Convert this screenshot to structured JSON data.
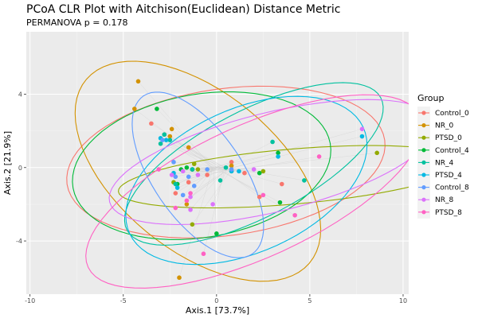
{
  "chart_data": {
    "type": "scatter",
    "title": "PCoA CLR Plot with Aitchison(Euclidean) Distance Metric",
    "subtitle": "PERMANOVA p = 0.178",
    "xlabel": "Axis.1   [73.7%]",
    "ylabel": "Axis.2   [21.9%]",
    "xlim": [
      -10.2,
      10.3
    ],
    "ylim": [
      -6.9,
      7.4
    ],
    "x_ticks": [
      -10,
      -5,
      0,
      5,
      10
    ],
    "y_ticks": [
      -4,
      0,
      4
    ],
    "grid": true,
    "legend_title": "Group",
    "legend_position": "right",
    "colors": {
      "panel_bg": "#ebebeb",
      "grid_major": "#ffffff",
      "grid_minor": "#f5f5f5",
      "segment": "#cfcfcf"
    },
    "series": [
      {
        "name": "Control_0",
        "color": "#F8766D",
        "points": [
          [
            -3.5,
            2.4
          ],
          [
            -2.8,
            1.8
          ],
          [
            -1.5,
            -0.8
          ],
          [
            -0.5,
            -0.4
          ],
          [
            0.8,
            0.3
          ],
          [
            2.3,
            -1.6
          ],
          [
            3.5,
            -0.9
          ],
          [
            -2.2,
            -1.4
          ],
          [
            1.5,
            -0.3
          ]
        ],
        "ellipse": {
          "cx": 0.5,
          "cy": 0.3,
          "rx": 8.6,
          "ry": 4.0,
          "angle": 8
        }
      },
      {
        "name": "NR_0",
        "color": "#D39200",
        "points": [
          [
            -4.2,
            4.7
          ],
          [
            -4.4,
            3.2
          ],
          [
            -2.4,
            2.1
          ],
          [
            -2.5,
            1.7
          ],
          [
            -1.6,
            -2.0
          ],
          [
            -2.0,
            -6.0
          ],
          [
            0.8,
            0.1
          ],
          [
            -1.5,
            1.1
          ]
        ],
        "ellipse": {
          "cx": -1.0,
          "cy": -0.2,
          "rx": 7.8,
          "ry": 4.3,
          "angle": -40
        }
      },
      {
        "name": "PTSD_0",
        "color": "#93AA00",
        "points": [
          [
            -1.3,
            -3.1
          ],
          [
            -1.0,
            -0.1
          ],
          [
            -1.3,
            -0.1
          ],
          [
            0.8,
            -0.2
          ],
          [
            2.5,
            -0.2
          ],
          [
            8.6,
            0.8
          ],
          [
            -2.3,
            -0.8
          ],
          [
            -1.2,
            0.2
          ]
        ],
        "ellipse": {
          "cx": 4.0,
          "cy": -0.5,
          "rx": 9.3,
          "ry": 1.5,
          "angle": 5
        }
      },
      {
        "name": "Control_4",
        "color": "#00BA38",
        "points": [
          [
            -3.2,
            3.2
          ],
          [
            -2.1,
            -0.9
          ],
          [
            -1.6,
            0.0
          ],
          [
            0.0,
            -3.6
          ],
          [
            2.3,
            -0.3
          ],
          [
            3.3,
            0.8
          ],
          [
            3.4,
            -1.9
          ],
          [
            -1.9,
            -0.1
          ],
          [
            -1.3,
            -0.1
          ]
        ],
        "ellipse": {
          "cx": -0.8,
          "cy": 0.1,
          "rx": 7.0,
          "ry": 3.9,
          "angle": 10
        }
      },
      {
        "name": "NR_4",
        "color": "#00C19F",
        "points": [
          [
            -2.8,
            1.8
          ],
          [
            -3.0,
            1.3
          ],
          [
            -2.5,
            1.5
          ],
          [
            -1.3,
            -0.1
          ],
          [
            0.5,
            0.0
          ],
          [
            3.0,
            1.4
          ],
          [
            4.7,
            -0.7
          ],
          [
            -2.2,
            -0.9
          ],
          [
            0.2,
            -0.7
          ]
        ],
        "ellipse": {
          "cx": 2.0,
          "cy": 0.2,
          "rx": 7.7,
          "ry": 2.9,
          "angle": 28
        }
      },
      {
        "name": "PTSD_4",
        "color": "#00B9E3",
        "points": [
          [
            7.8,
            1.7
          ],
          [
            3.3,
            0.6
          ],
          [
            0.8,
            -0.2
          ],
          [
            -3.0,
            1.6
          ],
          [
            -2.7,
            1.5
          ],
          [
            1.2,
            -0.2
          ],
          [
            -2.1,
            -1.1
          ],
          [
            -2.3,
            -0.3
          ]
        ],
        "ellipse": {
          "cx": 1.6,
          "cy": -0.7,
          "rx": 6.9,
          "ry": 3.9,
          "angle": 25
        }
      },
      {
        "name": "Control_8",
        "color": "#619CFF",
        "points": [
          [
            -2.3,
            0.3
          ],
          [
            -2.9,
            1.5
          ],
          [
            -1.8,
            -1.5
          ],
          [
            -0.5,
            -0.1
          ],
          [
            0.8,
            -0.1
          ],
          [
            -1.5,
            -0.5
          ],
          [
            -2.2,
            -0.5
          ],
          [
            -1.2,
            -1.0
          ]
        ],
        "ellipse": {
          "cx": -1.0,
          "cy": -0.4,
          "rx": 5.2,
          "ry": 2.4,
          "angle": -56
        }
      },
      {
        "name": "NR_8",
        "color": "#DB72FB",
        "points": [
          [
            7.8,
            2.1
          ],
          [
            2.0,
            -0.1
          ],
          [
            -0.2,
            -2.0
          ],
          [
            -1.4,
            -2.3
          ],
          [
            -1.8,
            -0.2
          ],
          [
            -1.0,
            -0.4
          ],
          [
            -2.4,
            -0.4
          ],
          [
            -1.4,
            -1.6
          ]
        ],
        "ellipse": {
          "cx": 3.0,
          "cy": 0.3,
          "rx": 9.0,
          "ry": 2.7,
          "angle": 14
        }
      },
      {
        "name": "PTSD_8",
        "color": "#FF61C3",
        "points": [
          [
            5.5,
            0.6
          ],
          [
            4.2,
            -2.6
          ],
          [
            -0.7,
            -4.7
          ],
          [
            -2.2,
            -2.2
          ],
          [
            -1.4,
            -1.4
          ],
          [
            2.5,
            -1.5
          ],
          [
            -3.1,
            -0.1
          ],
          [
            -1.6,
            -1.8
          ]
        ],
        "ellipse": {
          "cx": 2.0,
          "cy": -1.3,
          "rx": 9.8,
          "ry": 3.6,
          "angle": 25
        }
      }
    ]
  }
}
